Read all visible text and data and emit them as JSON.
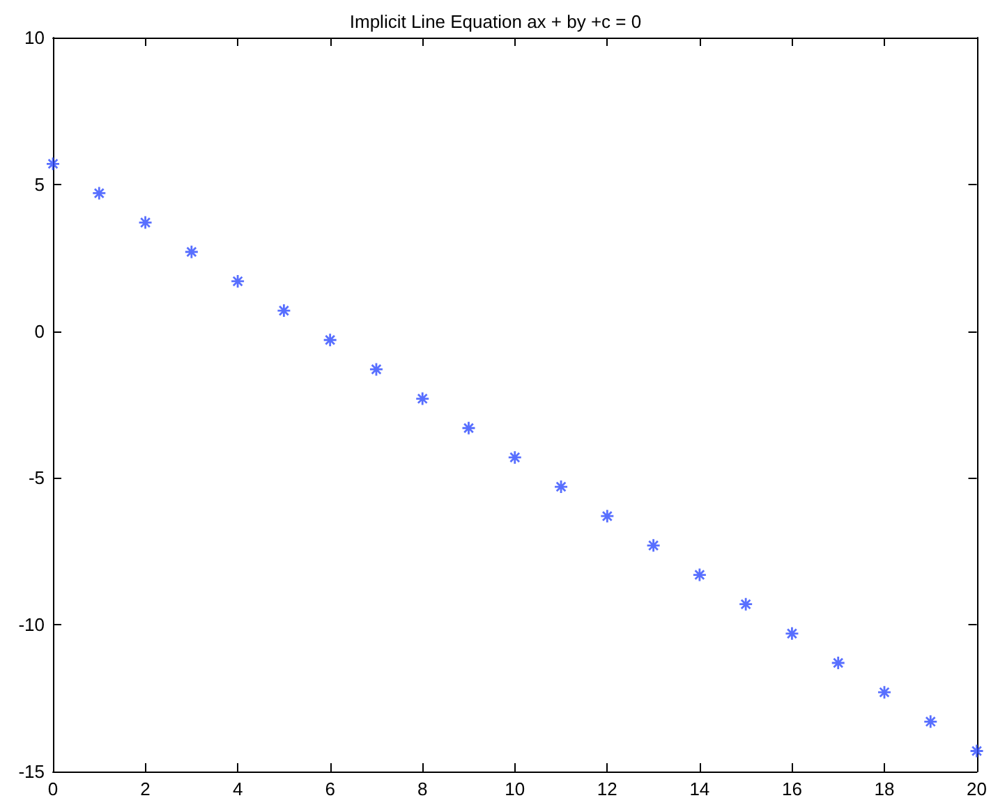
{
  "chart_data": {
    "type": "scatter",
    "title": "Implicit Line Equation ax + by +c = 0",
    "x": [
      0,
      1,
      2,
      3,
      4,
      5,
      6,
      7,
      8,
      9,
      10,
      11,
      12,
      13,
      14,
      15,
      16,
      17,
      18,
      19,
      20
    ],
    "series": [
      {
        "color": "#2e4bff",
        "values": [
          5.7,
          4.7,
          3.7,
          2.7,
          1.7,
          0.7,
          -0.3,
          -1.3,
          -2.3,
          -3.3,
          -4.3,
          -5.3,
          -6.3,
          -7.3,
          -8.3,
          -9.3,
          -10.3,
          -11.3,
          -12.3,
          -13.3,
          -14.3
        ]
      }
    ],
    "xlim": [
      0,
      20
    ],
    "xticks": [
      0,
      2,
      4,
      6,
      8,
      10,
      12,
      14,
      16,
      18,
      20
    ],
    "ylim": [
      -15,
      10
    ],
    "yticks": [
      -15,
      -10,
      -5,
      0,
      5,
      10
    ],
    "marker": "cross",
    "grid": false
  }
}
